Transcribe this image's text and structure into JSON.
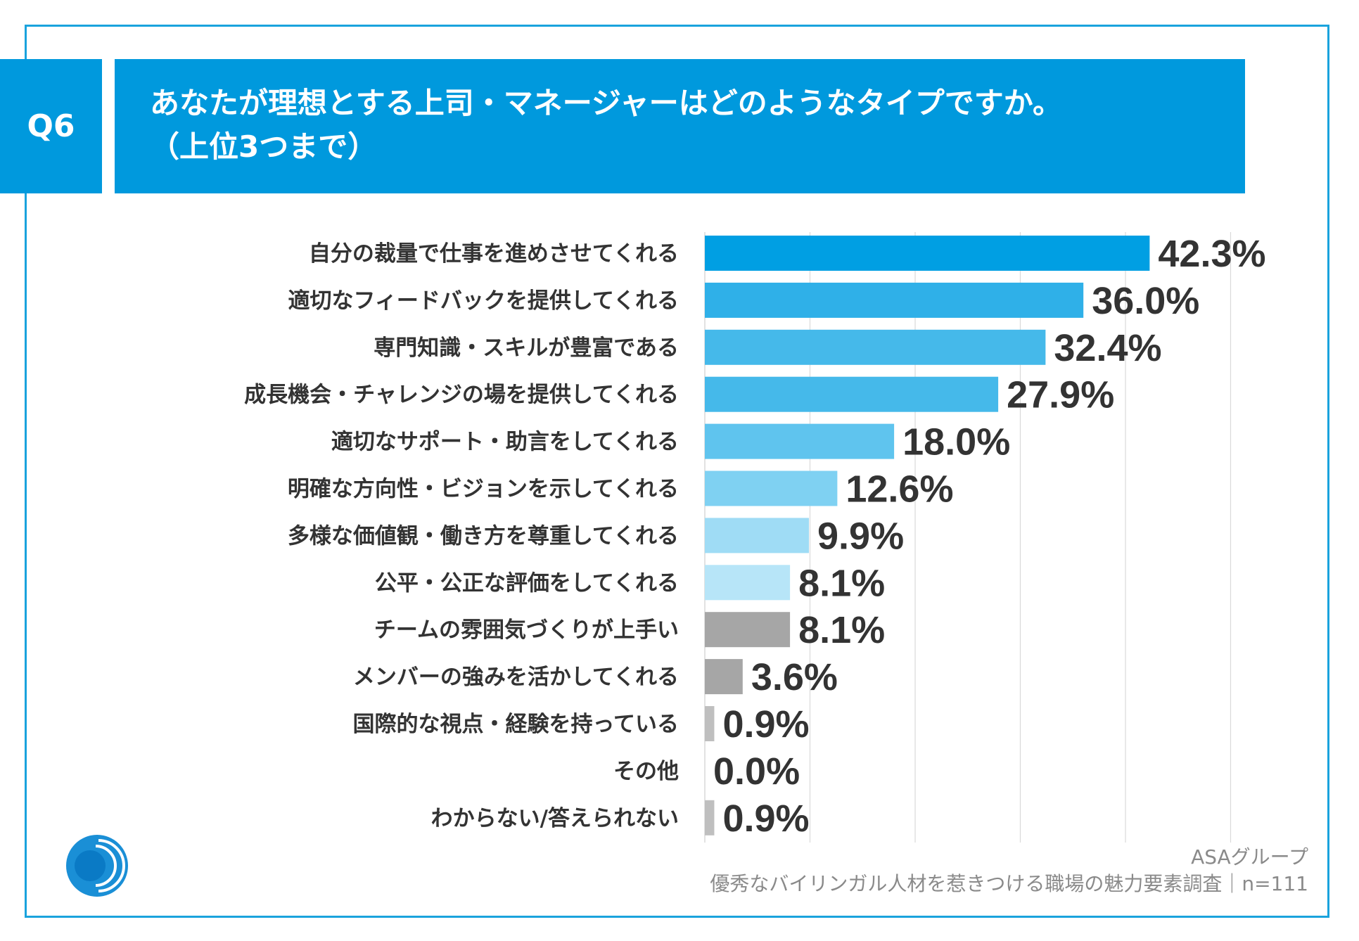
{
  "badge": "Q6",
  "title": {
    "line1": "あなたが理想とする上司・マネージャーはどのようなタイプですか。",
    "line2": "（上位3つまで）"
  },
  "source": {
    "company": "ASAグループ",
    "survey": "優秀なバイリンガル人材を惹きつける職場の魅力要素調査｜n=111"
  },
  "logo": {
    "icon": "asa-group-logo-icon"
  },
  "chart_data": {
    "type": "bar",
    "orientation": "horizontal",
    "title": "あなたが理想とする上司・マネージャーはどのようなタイプですか。（上位3つまで）",
    "unit": "%",
    "xlim": [
      0,
      50
    ],
    "grid": true,
    "categories": [
      "自分の裁量で仕事を進めさせてくれる",
      "適切なフィードバックを提供してくれる",
      "専門知識・スキルが豊富である",
      "成長機会・チャレンジの場を提供してくれる",
      "適切なサポート・助言をしてくれる",
      "明確な方向性・ビジョンを示してくれる",
      "多様な価値観・働き方を尊重してくれる",
      "公平・公正な評価をしてくれる",
      "チームの雰囲気づくりが上手い",
      "メンバーの強みを活かしてくれる",
      "国際的な視点・経験を持っている",
      "その他",
      "わからない/答えられない"
    ],
    "values": [
      42.3,
      36.0,
      32.4,
      27.9,
      18.0,
      12.6,
      9.9,
      8.1,
      8.1,
      3.6,
      0.9,
      0.0,
      0.9
    ],
    "value_labels": [
      "42.3%",
      "36.0%",
      "32.4%",
      "27.9%",
      "18.0%",
      "12.6%",
      "9.9%",
      "8.1%",
      "8.1%",
      "3.6%",
      "0.9%",
      "0.0%",
      "0.9%"
    ],
    "colors": [
      "#009fe3",
      "#2fb0e8",
      "#45b9ea",
      "#45b9ea",
      "#5fc4ee",
      "#7fd1f2",
      "#9fdcf5",
      "#b7e5f8",
      "#a6a6a6",
      "#a6a6a6",
      "#bfbfbf",
      "#bfbfbf",
      "#bfbfbf"
    ],
    "gridline_color": "#d9d9d9"
  }
}
